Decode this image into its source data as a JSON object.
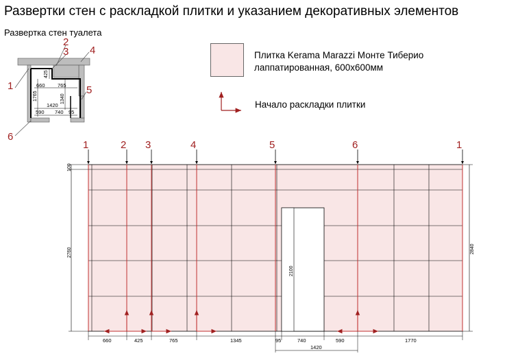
{
  "title": "Развертки стен с раскладкой плитки и указанием декоративных элементов",
  "subtitle": "Развертка стен туалета",
  "legend": {
    "tile_line1": "Плитка Kerama Marazzi Монте Тиберио",
    "tile_line2": "лаппатированная, 600x600мм",
    "tile_color": "#f9e6e6",
    "start_label": "Начало раскладки плитки"
  },
  "plan": {
    "markers": [
      "1",
      "2",
      "3",
      "4",
      "5",
      "6"
    ],
    "dims": [
      "425",
      "660",
      "765",
      "1765",
      "1340",
      "1420",
      "590",
      "740",
      "95"
    ]
  },
  "elevation": {
    "wall_markers": [
      "1",
      "2",
      "3",
      "4",
      "5",
      "6",
      "1"
    ],
    "bottom_dims": [
      "660",
      "425",
      "765",
      "1345",
      "95",
      "740",
      "590",
      "1770"
    ],
    "door_width_dim": "1420",
    "left_height": "2760",
    "top_offset": "100",
    "right_height": "2840",
    "door_height": "2100"
  },
  "colors": {
    "accent": "#a02020",
    "tile": "#f9e6e6"
  }
}
